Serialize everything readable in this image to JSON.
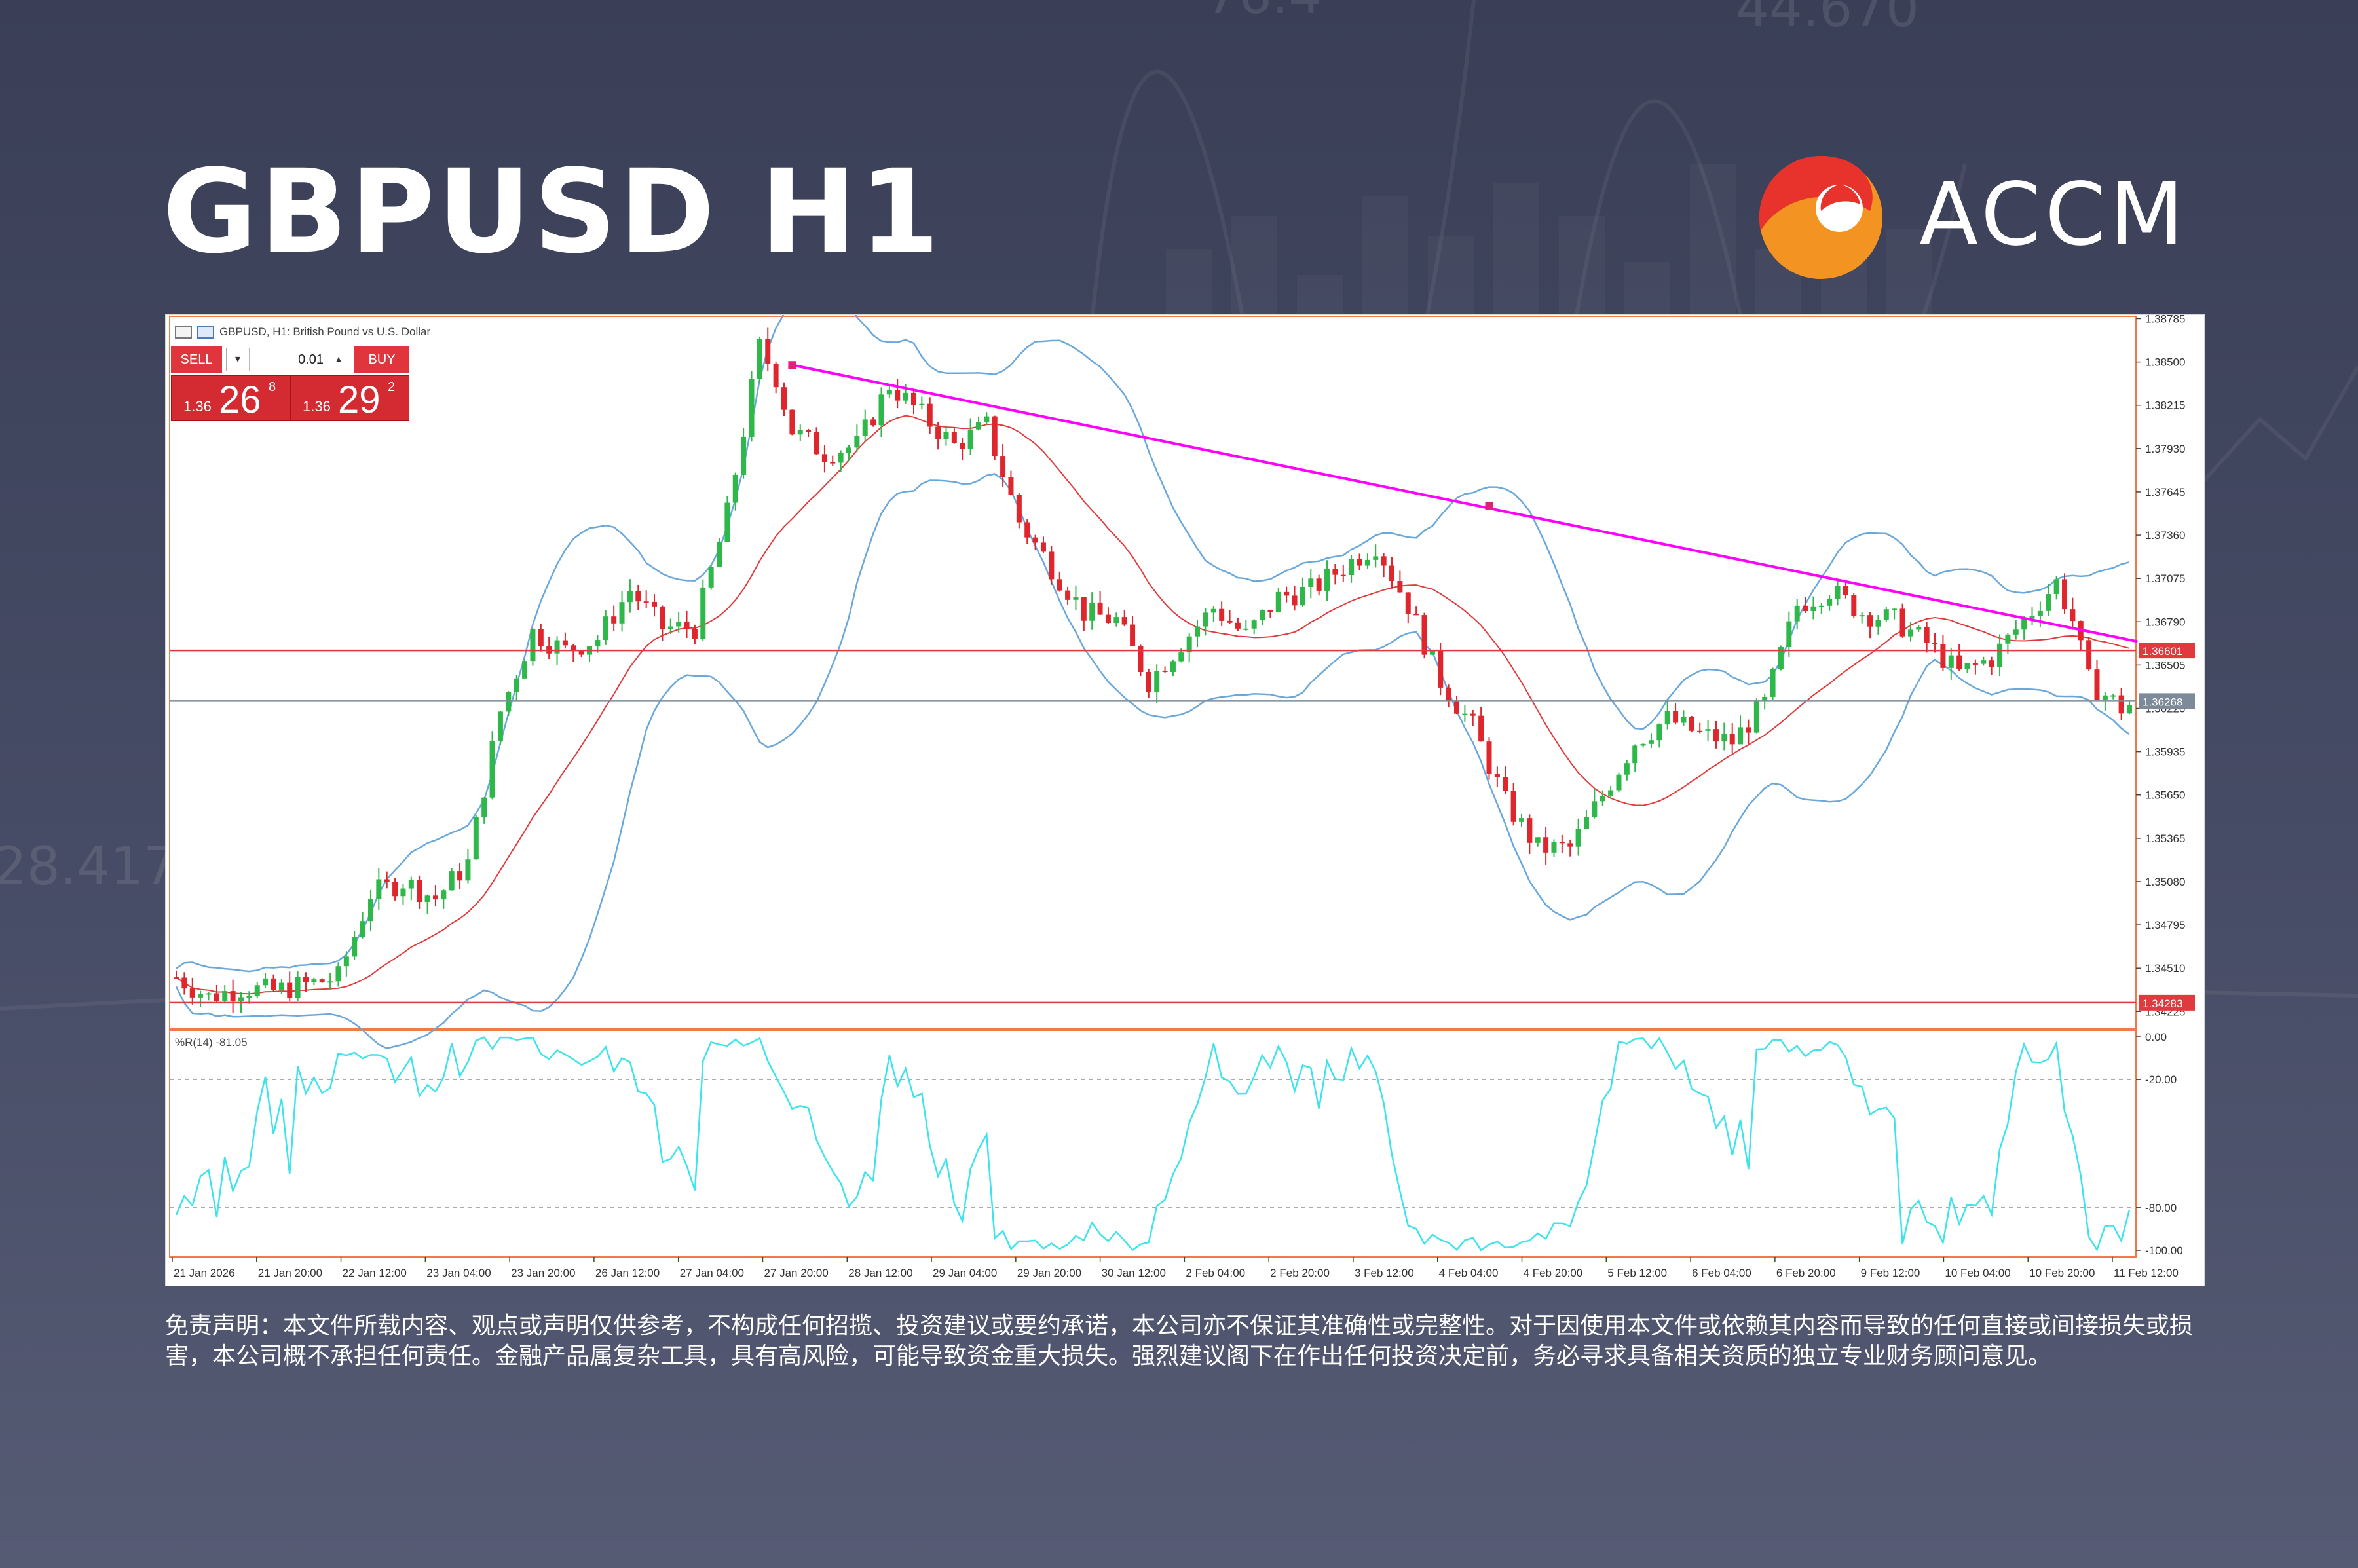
{
  "header": {
    "title": "GBPUSD H1",
    "brand": "ACCM",
    "brand_colors": {
      "red": "#e8322c",
      "orange": "#f39321"
    }
  },
  "background_numbers": [
    "76.4",
    "44.670",
    "28.417"
  ],
  "chart_window": {
    "symbol_label": "GBPUSD, H1: British Pound vs U.S. Dollar",
    "icons": [
      "chart-window-icon",
      "chart-type-icon"
    ],
    "trade_panel": {
      "sell_label": "SELL",
      "buy_label": "BUY",
      "lot_value": "0.01",
      "bid": {
        "prefix": "1.36",
        "big": "26",
        "sup": "8"
      },
      "ask": {
        "prefix": "1.36",
        "big": "29",
        "sup": "2"
      }
    }
  },
  "chart_data": {
    "type": "candlestick",
    "title": "",
    "subtitle": "GBPUSD, H1: British Pound vs U.S. Dollar",
    "indicators": [
      "Bollinger Bands",
      "Moving Average",
      "%R(14)"
    ],
    "y_ticks": [
      "1.38785",
      "1.38500",
      "1.38215",
      "1.37930",
      "1.37645",
      "1.37360",
      "1.37075",
      "1.36790",
      "1.36505",
      "1.36220",
      "1.35935",
      "1.35650",
      "1.35365",
      "1.35080",
      "1.34795",
      "1.34510",
      "1.34225"
    ],
    "ylim": [
      1.3411,
      1.388
    ],
    "x_ticks": [
      "21 Jan 2026",
      "21 Jan 20:00",
      "22 Jan 12:00",
      "23 Jan 04:00",
      "23 Jan 20:00",
      "26 Jan 12:00",
      "27 Jan 04:00",
      "27 Jan 20:00",
      "28 Jan 12:00",
      "29 Jan 04:00",
      "29 Jan 20:00",
      "30 Jan 12:00",
      "2 Feb 04:00",
      "2 Feb 20:00",
      "3 Feb 12:00",
      "4 Feb 04:00",
      "4 Feb 20:00",
      "5 Feb 12:00",
      "6 Feb 04:00",
      "6 Feb 20:00",
      "9 Feb 12:00",
      "10 Feb 04:00",
      "10 Feb 20:00",
      "11 Feb 12:00"
    ],
    "grid": false,
    "price_path": [
      [
        0,
        1.3445
      ],
      [
        4,
        1.3432
      ],
      [
        8,
        1.3438
      ],
      [
        12,
        1.3436
      ],
      [
        16,
        1.344
      ],
      [
        20,
        1.3445
      ],
      [
        24,
        1.35
      ],
      [
        28,
        1.3508
      ],
      [
        32,
        1.3497
      ],
      [
        36,
        1.352
      ],
      [
        40,
        1.362
      ],
      [
        44,
        1.3672
      ],
      [
        48,
        1.366
      ],
      [
        52,
        1.3668
      ],
      [
        56,
        1.37
      ],
      [
        60,
        1.3675
      ],
      [
        64,
        1.3675
      ],
      [
        68,
        1.375
      ],
      [
        72,
        1.386
      ],
      [
        74,
        1.384
      ],
      [
        76,
        1.3805
      ],
      [
        80,
        1.379
      ],
      [
        84,
        1.3795
      ],
      [
        88,
        1.3835
      ],
      [
        92,
        1.3815
      ],
      [
        96,
        1.3795
      ],
      [
        100,
        1.3808
      ],
      [
        104,
        1.3745
      ],
      [
        108,
        1.3715
      ],
      [
        112,
        1.3685
      ],
      [
        116,
        1.368
      ],
      [
        120,
        1.364
      ],
      [
        124,
        1.3665
      ],
      [
        128,
        1.3688
      ],
      [
        132,
        1.367
      ],
      [
        136,
        1.3695
      ],
      [
        140,
        1.37
      ],
      [
        144,
        1.3715
      ],
      [
        148,
        1.373
      ],
      [
        152,
        1.369
      ],
      [
        156,
        1.364
      ],
      [
        160,
        1.361
      ],
      [
        164,
        1.356
      ],
      [
        168,
        1.353
      ],
      [
        172,
        1.353
      ],
      [
        176,
        1.3565
      ],
      [
        180,
        1.36
      ],
      [
        184,
        1.3615
      ],
      [
        188,
        1.3605
      ],
      [
        192,
        1.36
      ],
      [
        196,
        1.3625
      ],
      [
        200,
        1.369
      ],
      [
        204,
        1.37
      ],
      [
        208,
        1.3685
      ],
      [
        212,
        1.368
      ],
      [
        216,
        1.3665
      ],
      [
        220,
        1.3645
      ],
      [
        224,
        1.3655
      ],
      [
        228,
        1.368
      ],
      [
        232,
        1.3705
      ],
      [
        234,
        1.368
      ],
      [
        236,
        1.364
      ],
      [
        240,
        1.3622
      ],
      [
        242,
        1.3627
      ]
    ],
    "n_bars": 242,
    "trendline": {
      "from": [
        76,
        1.3848
      ],
      "to": [
        242,
        1.3666
      ],
      "mid": [
        162,
        1.3755
      ],
      "color": "#ff00ff"
    },
    "horizontal_lines": [
      {
        "value": 1.36601,
        "label": "1.36601",
        "color": "#e0393e"
      },
      {
        "value": 1.36268,
        "label": "1.36268",
        "color": "#7d8a99"
      },
      {
        "value": 1.34283,
        "label": "1.34283",
        "color": "#e0393e"
      }
    ],
    "oscillator": {
      "label": "%R(14) -81.05",
      "value": -81.05,
      "y_ticks": [
        "0.00",
        "-20.00",
        "-80.00",
        "-100.00"
      ],
      "levels": [
        -20,
        -80
      ],
      "ylim": [
        -100,
        0
      ]
    },
    "colors": {
      "bull": "#2fb84a",
      "bear": "#e0262d",
      "bands": "#6aa8dc",
      "ma": "#e23a3a",
      "osc": "#3de4ec"
    }
  },
  "disclaimer": "免责声明：本文件所载内容、观点或声明仅供参考，不构成任何招揽、投资建议或要约承诺，本公司亦不保证其准确性或完整性。对于因使用本文件或依赖其内容而导致的任何直接或间接损失或损害，本公司概不承担任何责任。金融产品属复杂工具，具有高风险，可能导致资金重大损失。强烈建议阁下在作出任何投资决定前，务必寻求具备相关资质的独立专业财务顾问意见。"
}
